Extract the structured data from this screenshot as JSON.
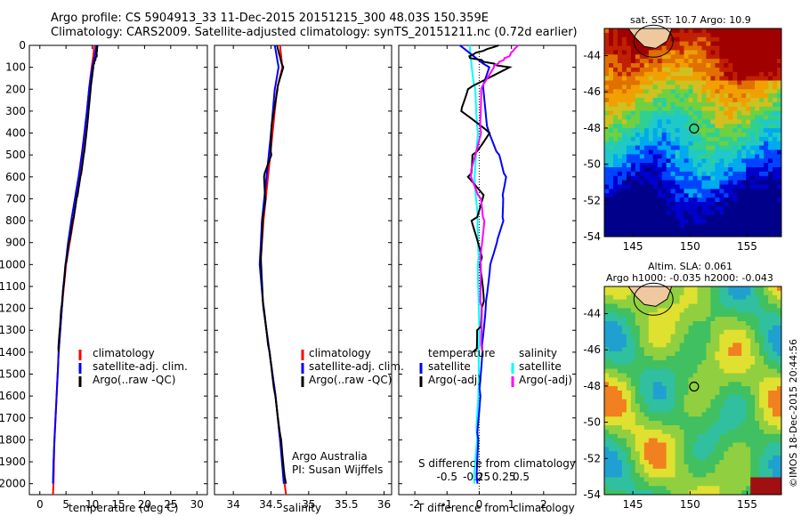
{
  "header": {
    "line1": "Argo profile: CS 5904913_33 11-Dec-2015 20151215_300 48.03S 150.359E",
    "line2": "Climatology: CARS2009. Satellite-adjusted climatology: synTS_20151211.nc (0.72d earlier)"
  },
  "colors": {
    "climatology": "#ff0000",
    "satellite": "#0000ff",
    "argo": "#000000",
    "salinity_sat": "#00ffff",
    "salinity_argo": "#ff00ff"
  },
  "panels": {
    "temp": {
      "xlabel": "temperature (deg C)",
      "legend": [
        "climatology",
        "satellite-adj. clim.",
        "Argo(..raw -QC)"
      ]
    },
    "sal": {
      "xlabel": "salinity",
      "legend": [
        "climatology",
        "satellite-adj. clim.",
        "Argo(..raw -QC)"
      ],
      "note1": "Argo Australia",
      "note2": "PI: Susan Wijffels"
    },
    "diff": {
      "xlabel": "T difference from climatology",
      "s_label": "S difference from climatology",
      "legend_t_title": "temperature",
      "legend_s_title": "salinity",
      "legend_t": [
        "satellite",
        "Argo(-adj)"
      ],
      "legend_s": [
        "satellite",
        "Argo(-adj)"
      ]
    },
    "sst": {
      "title": "sat. SST: 10.7  Argo: 10.9"
    },
    "sla": {
      "title1": "Altim. SLA: 0.061",
      "title2": "Argo h1000: -0.035 h2000: -0.043"
    }
  },
  "credit": "©IMOS 18-Dec-2015 20:44:56",
  "chart_data": [
    {
      "type": "line",
      "id": "temperature",
      "xlabel": "temperature (deg C)",
      "xlim": [
        -2,
        32
      ],
      "ylim": [
        2050,
        0
      ],
      "xticks": [
        0,
        5,
        10,
        15,
        20,
        25,
        30
      ],
      "yticks": [
        0,
        100,
        200,
        300,
        400,
        500,
        600,
        700,
        800,
        900,
        1000,
        1100,
        1200,
        1300,
        1400,
        1500,
        1600,
        1700,
        1800,
        1900,
        2000
      ],
      "series": [
        {
          "name": "climatology",
          "color": "#ff0000",
          "depth": [
            0,
            50,
            100,
            200,
            300,
            400,
            500,
            600,
            700,
            800,
            900,
            1000,
            1100,
            1200,
            1300,
            1400,
            1500,
            1600,
            1700,
            1800,
            1900,
            2000,
            2050
          ],
          "values": [
            10.4,
            10.2,
            9.9,
            9.4,
            9.0,
            8.6,
            8.1,
            7.6,
            7.0,
            6.4,
            5.7,
            5.0,
            4.6,
            4.2,
            3.9,
            3.6,
            3.4,
            3.2,
            3.0,
            2.8,
            2.7,
            2.6,
            2.5
          ]
        },
        {
          "name": "satellite-adj. clim.",
          "color": "#0000ff",
          "depth": [
            0,
            50,
            100,
            200,
            300,
            400,
            500,
            600,
            700,
            800,
            900,
            1000,
            1100,
            1200,
            1300,
            1400,
            1500,
            1600,
            1700,
            1800,
            1900,
            2000
          ],
          "values": [
            10.8,
            10.5,
            10.0,
            9.4,
            9.0,
            8.5,
            8.0,
            7.4,
            6.7,
            6.0,
            5.4,
            4.9,
            4.5,
            4.2,
            3.9,
            3.6,
            3.4,
            3.2,
            3.0,
            2.8,
            2.6,
            2.5
          ]
        },
        {
          "name": "Argo(..raw -QC)",
          "color": "#000000",
          "depth": [
            0,
            50,
            100,
            200,
            300,
            400,
            500,
            600,
            700,
            800,
            900,
            1000,
            1100,
            1200,
            1300,
            1400
          ],
          "values": [
            11.0,
            10.8,
            10.1,
            9.6,
            9.2,
            8.8,
            8.3,
            7.7,
            7.0,
            6.3,
            5.6,
            5.0,
            4.6,
            4.2,
            3.9,
            3.6
          ]
        }
      ]
    },
    {
      "type": "line",
      "id": "salinity",
      "xlabel": "salinity",
      "xlim": [
        33.75,
        36.1
      ],
      "ylim": [
        2050,
        0
      ],
      "xticks": [
        34,
        34.5,
        35,
        35.5,
        36
      ],
      "series": [
        {
          "name": "climatology",
          "color": "#ff0000",
          "depth": [
            0,
            100,
            200,
            400,
            600,
            800,
            1000,
            1200,
            1400,
            1600,
            1800,
            2000,
            2050
          ],
          "values": [
            34.62,
            34.65,
            34.58,
            34.52,
            34.46,
            34.4,
            34.36,
            34.4,
            34.48,
            34.56,
            34.62,
            34.68,
            34.7
          ]
        },
        {
          "name": "satellite-adj. clim.",
          "color": "#0000ff",
          "depth": [
            0,
            100,
            200,
            400,
            600,
            800,
            1000,
            1200,
            1400,
            1600,
            1800,
            2000
          ],
          "values": [
            34.55,
            34.6,
            34.55,
            34.5,
            34.44,
            34.38,
            34.35,
            34.4,
            34.48,
            34.56,
            34.62,
            34.67
          ]
        },
        {
          "name": "Argo(..raw -QC)",
          "color": "#000000",
          "depth": [
            0,
            100,
            200,
            400,
            500,
            600,
            700,
            800,
            1000,
            1200,
            1400,
            1600,
            1800,
            2000
          ],
          "values": [
            34.58,
            34.66,
            34.58,
            34.5,
            34.5,
            34.4,
            34.42,
            34.38,
            34.36,
            34.4,
            34.48,
            34.56,
            34.64,
            34.7
          ]
        }
      ]
    },
    {
      "type": "line",
      "id": "difference",
      "xlabel": "T difference from climatology",
      "xlim": [
        -2.5,
        3
      ],
      "ylim": [
        2050,
        0
      ],
      "xticks": [
        -2,
        -1,
        0,
        1,
        2
      ],
      "s_label": "S difference from climatology",
      "s_ticks": [
        "-0.5",
        "-0.25",
        "0",
        "0.25",
        "0.5"
      ],
      "series": [
        {
          "name": "temperature satellite",
          "color": "#0000ff",
          "depth": [
            0,
            100,
            200,
            400,
            500,
            600,
            700,
            800,
            900,
            1000,
            1200,
            1400,
            1600,
            1800,
            2000
          ],
          "values": [
            -0.6,
            0.3,
            0.1,
            0.3,
            0.6,
            0.8,
            0.7,
            0.7,
            0.5,
            0.3,
            0.15,
            0.05,
            0.0,
            -0.05,
            -0.05
          ]
        },
        {
          "name": "temperature Argo(-adj)",
          "color": "#000000",
          "depth": [
            0,
            50,
            100,
            200,
            300,
            400,
            500,
            600,
            700,
            800,
            1000,
            1200,
            1300,
            1400
          ],
          "values": [
            0.6,
            -0.4,
            0.8,
            -0.5,
            -0.7,
            0.2,
            -0.3,
            -0.4,
            0.1,
            -0.2,
            0.0,
            0.0,
            -0.1,
            -0.2
          ]
        },
        {
          "name": "salinity satellite",
          "color": "#00ffff",
          "depth": [
            0,
            200,
            400,
            600,
            800,
            1000,
            1400,
            1800,
            2000
          ],
          "values": [
            -0.3,
            -0.1,
            0.0,
            -0.1,
            0.0,
            0.0,
            -0.05,
            -0.1,
            -0.15
          ]
        },
        {
          "name": "salinity Argo(-adj)",
          "color": "#ff00ff",
          "depth": [
            0,
            50,
            100,
            200,
            400,
            600,
            700,
            800,
            1000,
            1200,
            1400
          ],
          "values": [
            1.2,
            0.9,
            0.4,
            0.0,
            0.0,
            -0.3,
            0.0,
            0.1,
            0.0,
            0.05,
            0.1
          ]
        }
      ]
    },
    {
      "type": "heatmap",
      "id": "sst-map",
      "title": "sat. SST: 10.7  Argo: 10.9",
      "xlim": [
        142.5,
        158
      ],
      "ylim": [
        -54,
        -42.5
      ],
      "xticks": [
        145,
        150,
        155
      ],
      "yticks": [
        -44,
        -46,
        -48,
        -50,
        -52,
        -54
      ],
      "marker": {
        "lon": 150.359,
        "lat": -48.03
      }
    },
    {
      "type": "heatmap",
      "id": "sla-map",
      "title": "Altim. SLA: 0.061",
      "subtitle": "Argo h1000: -0.035 h2000: -0.043",
      "xlim": [
        142.5,
        158
      ],
      "ylim": [
        -54,
        -42.5
      ],
      "xticks": [
        145,
        150,
        155
      ],
      "yticks": [
        -44,
        -46,
        -48,
        -50,
        -52,
        -54
      ],
      "marker": {
        "lon": 150.359,
        "lat": -48.03
      }
    }
  ]
}
